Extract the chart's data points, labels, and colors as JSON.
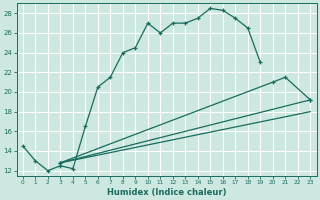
{
  "xlabel": "Humidex (Indice chaleur)",
  "bg_color": "#cce8e0",
  "line_color": "#1a6b5e",
  "grid_color": "#ffffff",
  "xlim": [
    -0.5,
    23.5
  ],
  "ylim": [
    11.5,
    29.0
  ],
  "yticks": [
    12,
    14,
    16,
    18,
    20,
    22,
    24,
    26,
    28
  ],
  "xticks": [
    0,
    1,
    2,
    3,
    4,
    5,
    6,
    7,
    8,
    9,
    10,
    11,
    12,
    13,
    14,
    15,
    16,
    17,
    18,
    19,
    20,
    21,
    22,
    23
  ],
  "line1_x": [
    0,
    1,
    2,
    3,
    4,
    5,
    6,
    7,
    8,
    9,
    10,
    11,
    12,
    13,
    14,
    15,
    16,
    17,
    18,
    19
  ],
  "line1_y": [
    14.5,
    13.0,
    12.0,
    12.5,
    12.2,
    16.5,
    20.5,
    21.5,
    24.0,
    24.5,
    27.0,
    26.0,
    27.0,
    27.0,
    27.5,
    28.5,
    28.3,
    27.5,
    26.5,
    23.0
  ],
  "line2_x": [
    3,
    20,
    21,
    23
  ],
  "line2_y": [
    12.8,
    21.0,
    21.5,
    19.2
  ],
  "line3_x": [
    3,
    23
  ],
  "line3_y": [
    12.8,
    19.2
  ],
  "line4_x": [
    3,
    23
  ],
  "line4_y": [
    12.8,
    18.0
  ]
}
